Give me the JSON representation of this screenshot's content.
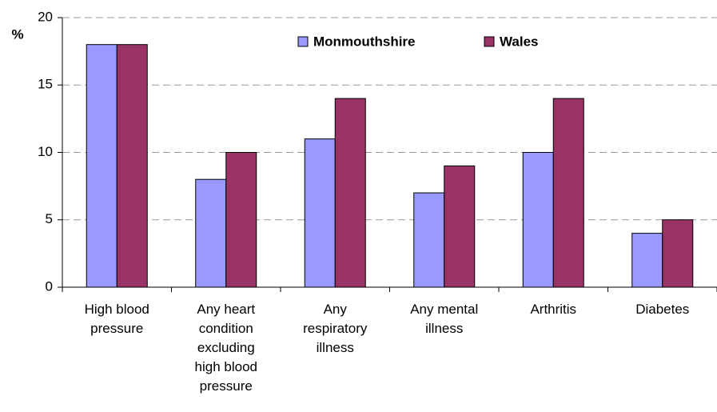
{
  "chart_data": {
    "type": "bar",
    "y_label": "%",
    "categories": [
      "High blood pressure",
      "Any heart condition excluding high blood pressure",
      "Any respiratory illness",
      "Any mental illness",
      "Arthritis",
      "Diabetes"
    ],
    "series": [
      {
        "name": "Monmouthshire",
        "color": "#9999ff",
        "values": [
          18,
          8,
          11,
          7,
          10,
          4
        ]
      },
      {
        "name": "Wales",
        "color": "#993366",
        "values": [
          18,
          10,
          14,
          9,
          14,
          5
        ]
      }
    ],
    "ylim": [
      0,
      20
    ],
    "yticks": [
      0,
      5,
      10,
      15,
      20
    ],
    "grid": true,
    "legend": "top"
  }
}
